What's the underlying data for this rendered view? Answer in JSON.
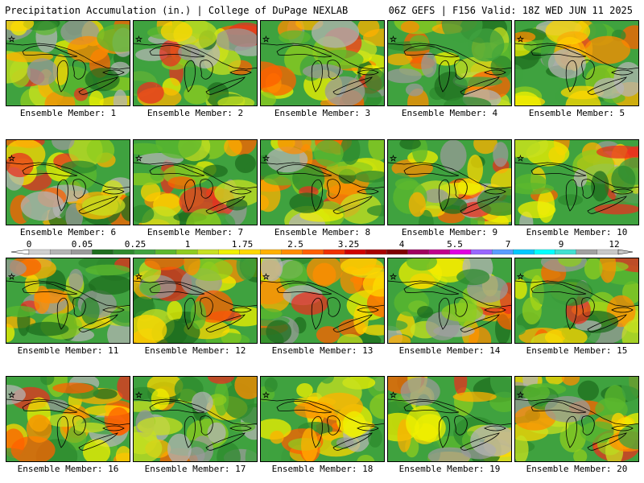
{
  "header": {
    "title": "Precipitation Accumulation (in.) | College of DuPage NEXLAB",
    "run_info": "06Z GEFS | F156 Valid: 18Z WED JUN 11 2025"
  },
  "panels": [
    {
      "label": "Ensemble Member: 1"
    },
    {
      "label": "Ensemble Member: 2"
    },
    {
      "label": "Ensemble Member: 3"
    },
    {
      "label": "Ensemble Member: 4"
    },
    {
      "label": "Ensemble Member: 5"
    },
    {
      "label": "Ensemble Member: 6"
    },
    {
      "label": "Ensemble Member: 7"
    },
    {
      "label": "Ensemble Member: 8"
    },
    {
      "label": "Ensemble Member: 9"
    },
    {
      "label": "Ensemble Member: 10"
    },
    {
      "label": "Ensemble Member: 11"
    },
    {
      "label": "Ensemble Member: 12"
    },
    {
      "label": "Ensemble Member: 13"
    },
    {
      "label": "Ensemble Member: 14"
    },
    {
      "label": "Ensemble Member: 15"
    },
    {
      "label": "Ensemble Member: 16"
    },
    {
      "label": "Ensemble Member: 17"
    },
    {
      "label": "Ensemble Member: 18"
    },
    {
      "label": "Ensemble Member: 19"
    },
    {
      "label": "Ensemble Member: 20"
    }
  ],
  "legend": {
    "tick_labels": [
      "0",
      "0.05",
      "0.25",
      "1",
      "1.75",
      "2.5",
      "3.25",
      "4",
      "5.5",
      "7",
      "9",
      "12"
    ],
    "colors": [
      "#cfcfcf",
      "#b4b4b4",
      "#9a9a9a",
      "#1f6e1f",
      "#2e8a2e",
      "#3fa23f",
      "#5cb82e",
      "#8fcc1f",
      "#c8e020",
      "#f0f000",
      "#ffd700",
      "#ffb000",
      "#ff8c00",
      "#ff6000",
      "#f03000",
      "#d00000",
      "#a80000",
      "#800000",
      "#a00060",
      "#c0008c",
      "#e000e0",
      "#9966ff",
      "#5a9cff",
      "#00c8ff",
      "#00ffff",
      "#40e0d0",
      "#a0a0a0",
      "#c8c8c8"
    ]
  }
}
